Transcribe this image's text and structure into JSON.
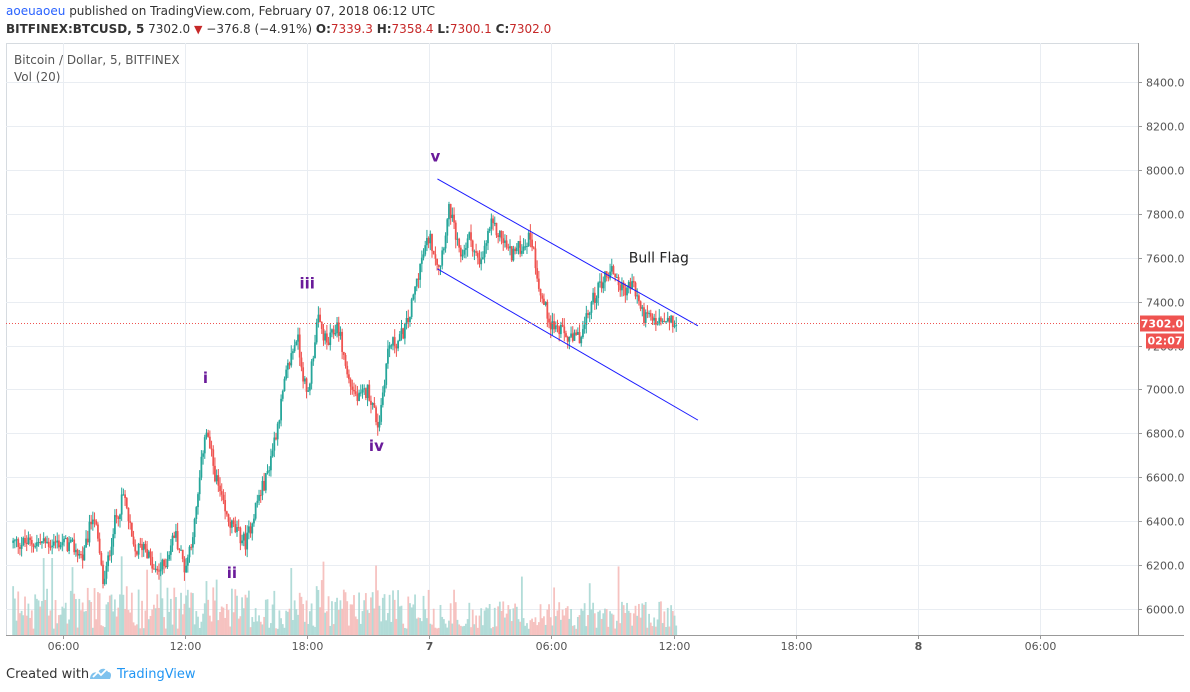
{
  "header": {
    "author": "aoeuaoeu",
    "publish_text": " published on TradingView.com, February 07, 2018 06:12 UTC",
    "symbol": "BITFINEX:BTCUSD, 5",
    "last": "7302.0",
    "down_arrow": "▼",
    "change": "−376.8 (−4.91%)",
    "open_label": "O:",
    "open_value": "7339.3",
    "high_label": "H:",
    "high_value": "7358.4",
    "low_label": "L:",
    "low_value": "7300.1",
    "close_label": "C:",
    "close_value": "7302.0"
  },
  "chart_data": {
    "type": "candlestick",
    "title": "Bitcoin / Dollar, 5, BITFINEX",
    "subtitle": "Vol (20)",
    "x_tick_labels": [
      "06:00",
      "12:00",
      "18:00",
      "7",
      "06:00",
      "12:00",
      "18:00",
      "8",
      "06:00"
    ],
    "y_ticks": [
      6000,
      6200,
      6400,
      6600,
      6800,
      7000,
      7200,
      7400,
      7600,
      7800,
      8000,
      8200,
      8400
    ],
    "y_tick_labels": [
      "6000.0",
      "6200.0",
      "6400.0",
      "6600.0",
      "6800.0",
      "7000.0",
      "7200.0",
      "7400.0",
      "7600.0",
      "7800.0",
      "8000.0",
      "8200.0",
      "8400.0"
    ],
    "ylim": [
      5880,
      8580
    ],
    "grid": true,
    "last_price": 7302.0,
    "last_price_label": "7302.0",
    "countdown_label": "02:07",
    "price_path_hours": [
      0,
      0.5,
      1,
      1.5,
      2,
      2.5,
      3,
      3.5,
      4,
      4.5,
      5,
      5.5,
      6,
      6.5,
      7,
      7.5,
      8,
      8.5,
      9,
      9.5,
      10,
      10.5,
      11,
      11.5,
      12,
      12.5,
      13,
      13.5,
      14,
      14.5,
      15,
      15.5,
      16,
      16.5,
      17,
      17.5,
      18,
      18.5,
      19,
      19.5,
      20,
      20.5,
      21,
      21.5,
      22,
      22.5,
      23,
      23.5,
      24,
      24.5,
      25,
      25.5,
      26,
      26.5,
      27,
      27.5,
      28,
      28.5,
      29,
      29.5,
      30,
      30.2
    ],
    "price_path_values": [
      6300,
      6280,
      6230,
      6450,
      6100,
      6380,
      6520,
      6250,
      6300,
      6160,
      6200,
      6350,
      6180,
      6400,
      6830,
      6600,
      6420,
      6350,
      6300,
      6480,
      6600,
      6820,
      7080,
      7250,
      6950,
      7320,
      7200,
      7300,
      7050,
      6950,
      7000,
      6830,
      7200,
      7220,
      7320,
      7550,
      7700,
      7560,
      7830,
      7600,
      7700,
      7550,
      7750,
      7700,
      7620,
      7650,
      7700,
      7420,
      7300,
      7260,
      7220,
      7250,
      7400,
      7500,
      7550,
      7450,
      7480,
      7340,
      7310,
      7302,
      7302,
      7302
    ],
    "volume_max": 310,
    "annotations": [
      {
        "label": "i",
        "hour": 7.0,
        "price": 7030
      },
      {
        "label": "ii",
        "hour": 8.3,
        "price": 6140
      },
      {
        "label": "iii",
        "hour": 12.0,
        "price": 7460
      },
      {
        "label": "iv",
        "hour": 15.4,
        "price": 6720
      },
      {
        "label": "v",
        "hour": 18.3,
        "price": 8040
      },
      {
        "label": "Bull Flag",
        "hour": 27.8,
        "price": 7580
      }
    ],
    "channel_lines": [
      {
        "from_hour": 18.4,
        "from_price": 7960,
        "to_hour": 31.2,
        "to_price": 7290
      },
      {
        "from_hour": 18.4,
        "from_price": 7550,
        "to_hour": 31.2,
        "to_price": 6860
      }
    ]
  },
  "colors": {
    "up": "#26a69a",
    "down": "#ef5350",
    "annotation": "#6a1b9a",
    "channel": "#1a1aff",
    "price_line": "#ef5350",
    "grid": "#e9edf2",
    "axis_text": "#555555"
  },
  "footer": {
    "created_with": "Created with",
    "brand": "TradingView"
  }
}
